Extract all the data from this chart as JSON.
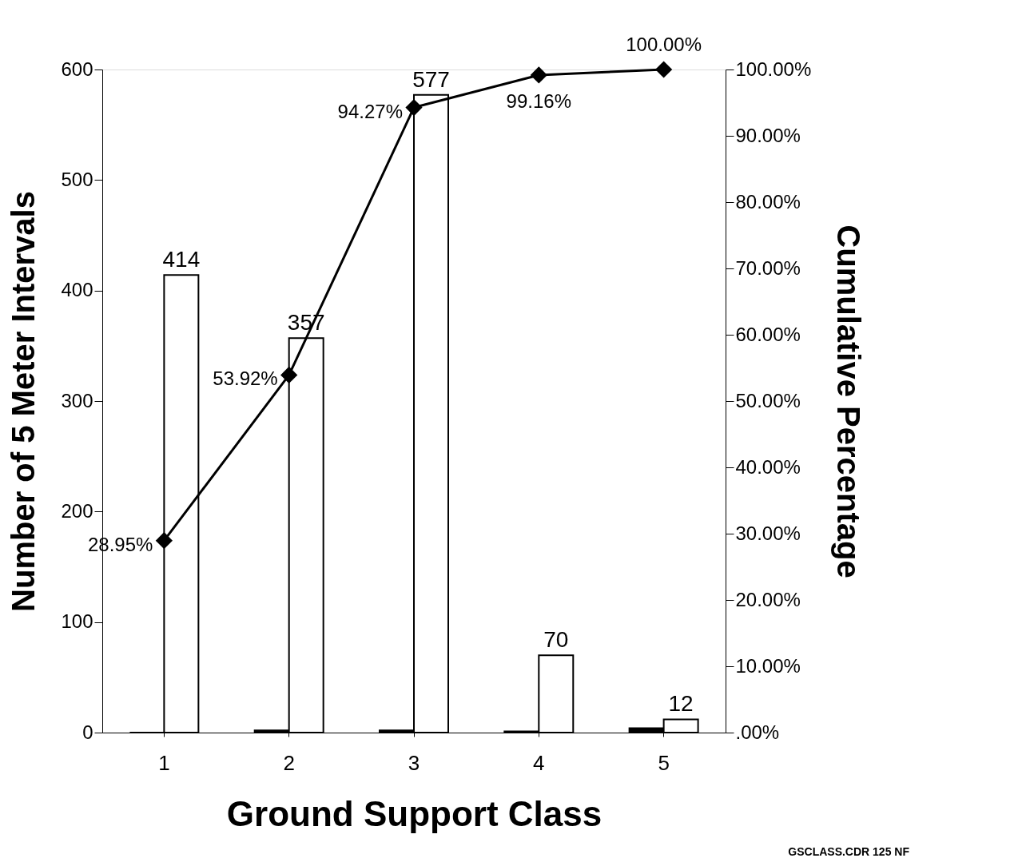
{
  "chart_data": {
    "type": "bar",
    "xlabel": "Ground  Support Class",
    "ylabel": "Number of 5 Meter Intervals",
    "y2label": "Cumulative Percentage",
    "categories": [
      "1",
      "2",
      "3",
      "4",
      "5"
    ],
    "series": [
      {
        "color": "#000000",
        "values": [
          0,
          2,
          2,
          1,
          4
        ]
      },
      {
        "color": "#ffffff",
        "values": [
          414,
          357,
          577,
          70,
          12
        ],
        "value_labels": [
          "414",
          "357",
          "577",
          "70",
          "12"
        ]
      },
      {
        "type": "line",
        "axis": "y2",
        "color": "#000000",
        "values": [
          28.95,
          53.92,
          94.27,
          99.16,
          100
        ],
        "value_labels": [
          "28.95%",
          "53.92%",
          "94.27%",
          "99.16%",
          "100.00%"
        ]
      }
    ],
    "ylim": [
      0,
      600
    ],
    "yticks": [
      0,
      100,
      200,
      300,
      400,
      500,
      600
    ],
    "y2lim": [
      0,
      100
    ],
    "y2ticks": [
      {
        "value": 0,
        "label": ".00%"
      },
      {
        "value": 10,
        "label": "10.00%"
      },
      {
        "value": 20,
        "label": "20.00%"
      },
      {
        "value": 30,
        "label": "30.00%"
      },
      {
        "value": 40,
        "label": "40.00%"
      },
      {
        "value": 50,
        "label": "50.00%"
      },
      {
        "value": 60,
        "label": "60.00%"
      },
      {
        "value": 70,
        "label": "70.00%"
      },
      {
        "value": 80,
        "label": "80.00%"
      },
      {
        "value": 90,
        "label": "90.00%"
      },
      {
        "value": 100,
        "label": "100.00%"
      }
    ],
    "marker": "diamond",
    "grid": false,
    "annotations": [
      "GSCLASS.CDR 125 NF"
    ]
  }
}
